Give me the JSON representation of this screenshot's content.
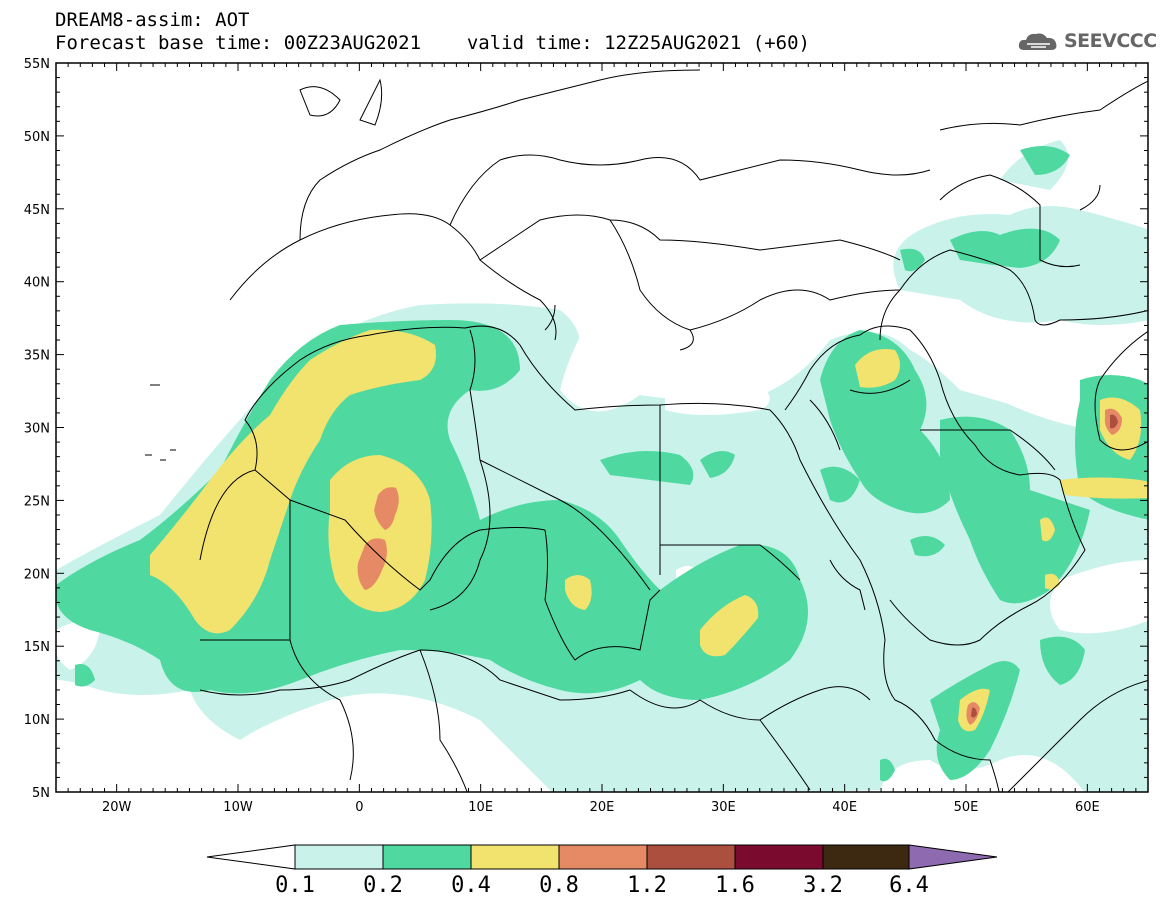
{
  "header": {
    "title": "DREAM8-assim: AOT",
    "base_time_label": "Forecast base time: 00Z23AUG2021",
    "valid_time_label": "valid time: 12Z25AUG2021 (+60)",
    "logo_text": "SEEVCCC"
  },
  "map": {
    "lon_range": [
      -25,
      65
    ],
    "lat_range": [
      5,
      55
    ],
    "lon_ticks": [
      "20W",
      "10W",
      "0",
      "10E",
      "20E",
      "30E",
      "40E",
      "50E",
      "60E"
    ],
    "lat_ticks": [
      "55N",
      "50N",
      "45N",
      "40N",
      "35N",
      "30N",
      "25N",
      "20N",
      "15N",
      "10N",
      "5N"
    ]
  },
  "colorbar": {
    "levels": [
      "0.1",
      "0.2",
      "0.4",
      "0.8",
      "1.2",
      "1.6",
      "3.2",
      "6.4"
    ],
    "colors": [
      "#ffffff",
      "#c8f2ea",
      "#4fd9a0",
      "#f2e26e",
      "#e68a66",
      "#ad4f3e",
      "#7a0b2f",
      "#3d2812",
      "#8e6bb0"
    ]
  },
  "colors": {
    "aot_0_1": "#c8f2ea",
    "aot_0_2": "#4fd9a0",
    "aot_0_4": "#f2e26e",
    "aot_0_8": "#e68a66",
    "aot_1_2": "#ad4f3e"
  }
}
